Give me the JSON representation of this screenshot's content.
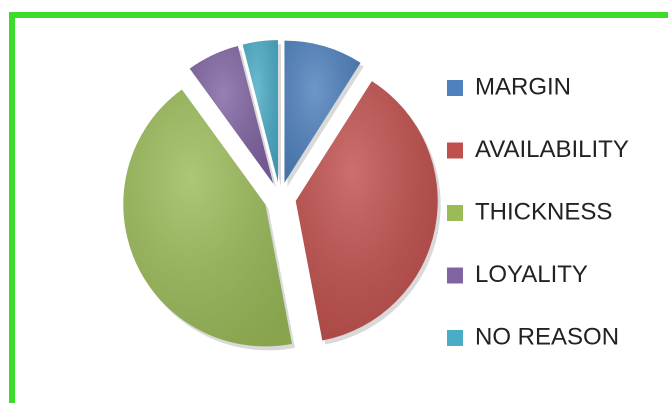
{
  "chart_data": {
    "type": "pie",
    "categories": [
      "MARGIN",
      "AVAILABILITY",
      "THICKNESS",
      "LOYALITY",
      "NO REASON"
    ],
    "values": [
      9,
      38,
      43,
      6,
      4
    ],
    "colors": [
      "#4f81bd",
      "#c0504d",
      "#9bbb59",
      "#8064a2",
      "#4bacc6"
    ],
    "legend": "right"
  }
}
